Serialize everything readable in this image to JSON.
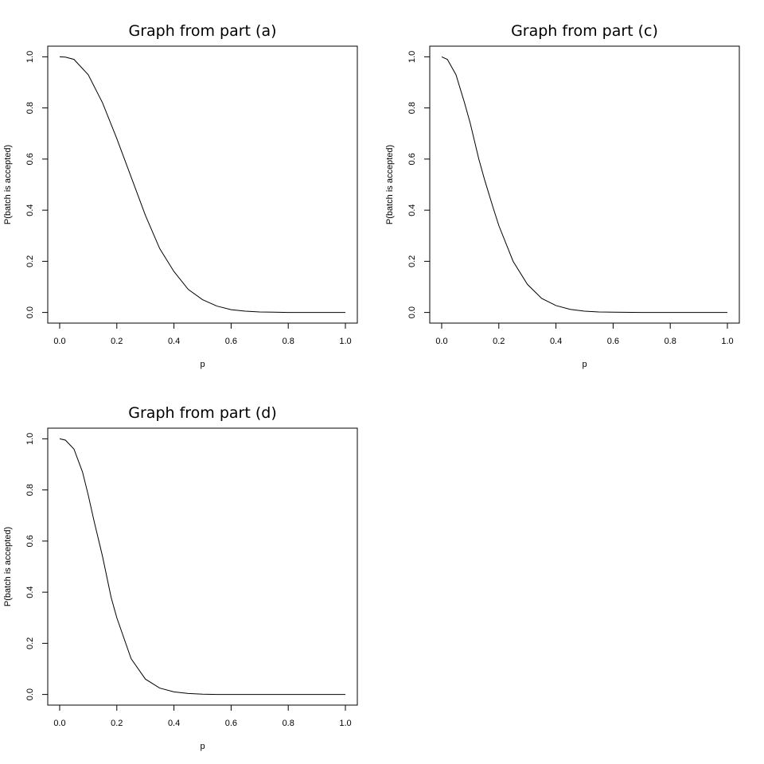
{
  "chart_data": [
    {
      "type": "line",
      "title": "Graph from part (a)",
      "xlabel": "p",
      "ylabel": "P(batch is accepted)",
      "xlim": [
        0,
        1
      ],
      "ylim": [
        0,
        1
      ],
      "x_ticks": [
        "0.0",
        "0.2",
        "0.4",
        "0.6",
        "0.8",
        "1.0"
      ],
      "y_ticks": [
        "0.0",
        "0.2",
        "0.4",
        "0.6",
        "0.8",
        "1.0"
      ],
      "grid": false,
      "series": [
        {
          "x": [
            0,
            0.02,
            0.05,
            0.1,
            0.15,
            0.2,
            0.25,
            0.3,
            0.35,
            0.4,
            0.45,
            0.5,
            0.55,
            0.6,
            0.65,
            0.7,
            0.75,
            0.8,
            0.9,
            1.0
          ],
          "y": [
            1.0,
            0.999,
            0.99,
            0.93,
            0.82,
            0.68,
            0.53,
            0.38,
            0.25,
            0.16,
            0.09,
            0.05,
            0.025,
            0.011,
            0.005,
            0.002,
            0.001,
            0,
            0,
            0
          ]
        }
      ]
    },
    {
      "type": "line",
      "title": "Graph from part (c)",
      "xlabel": "p",
      "ylabel": "P(batch is accepted)",
      "xlim": [
        0,
        1
      ],
      "ylim": [
        0,
        1
      ],
      "x_ticks": [
        "0.0",
        "0.2",
        "0.4",
        "0.6",
        "0.8",
        "1.0"
      ],
      "y_ticks": [
        "0.0",
        "0.2",
        "0.4",
        "0.6",
        "0.8",
        "1.0"
      ],
      "grid": false,
      "series": [
        {
          "x": [
            0,
            0.02,
            0.05,
            0.08,
            0.1,
            0.13,
            0.15,
            0.18,
            0.2,
            0.25,
            0.3,
            0.35,
            0.4,
            0.45,
            0.5,
            0.55,
            0.6,
            0.7,
            0.8,
            1.0
          ],
          "y": [
            1.0,
            0.99,
            0.93,
            0.82,
            0.74,
            0.6,
            0.52,
            0.41,
            0.34,
            0.2,
            0.11,
            0.055,
            0.027,
            0.012,
            0.005,
            0.002,
            0.001,
            0,
            0,
            0
          ]
        }
      ]
    },
    {
      "type": "line",
      "title": "Graph from part (d)",
      "xlabel": "p",
      "ylabel": "P(batch is accepted)",
      "xlim": [
        0,
        1
      ],
      "ylim": [
        0,
        1
      ],
      "x_ticks": [
        "0.0",
        "0.2",
        "0.4",
        "0.6",
        "0.8",
        "1.0"
      ],
      "y_ticks": [
        "0.0",
        "0.2",
        "0.4",
        "0.6",
        "0.8",
        "1.0"
      ],
      "grid": false,
      "series": [
        {
          "x": [
            0,
            0.02,
            0.05,
            0.08,
            0.1,
            0.12,
            0.15,
            0.18,
            0.2,
            0.25,
            0.3,
            0.35,
            0.4,
            0.45,
            0.5,
            0.55,
            0.6,
            0.7,
            0.8,
            1.0
          ],
          "y": [
            1.0,
            0.995,
            0.96,
            0.87,
            0.78,
            0.68,
            0.54,
            0.38,
            0.3,
            0.14,
            0.06,
            0.025,
            0.01,
            0.004,
            0.001,
            0,
            0,
            0,
            0,
            0
          ]
        }
      ]
    }
  ]
}
